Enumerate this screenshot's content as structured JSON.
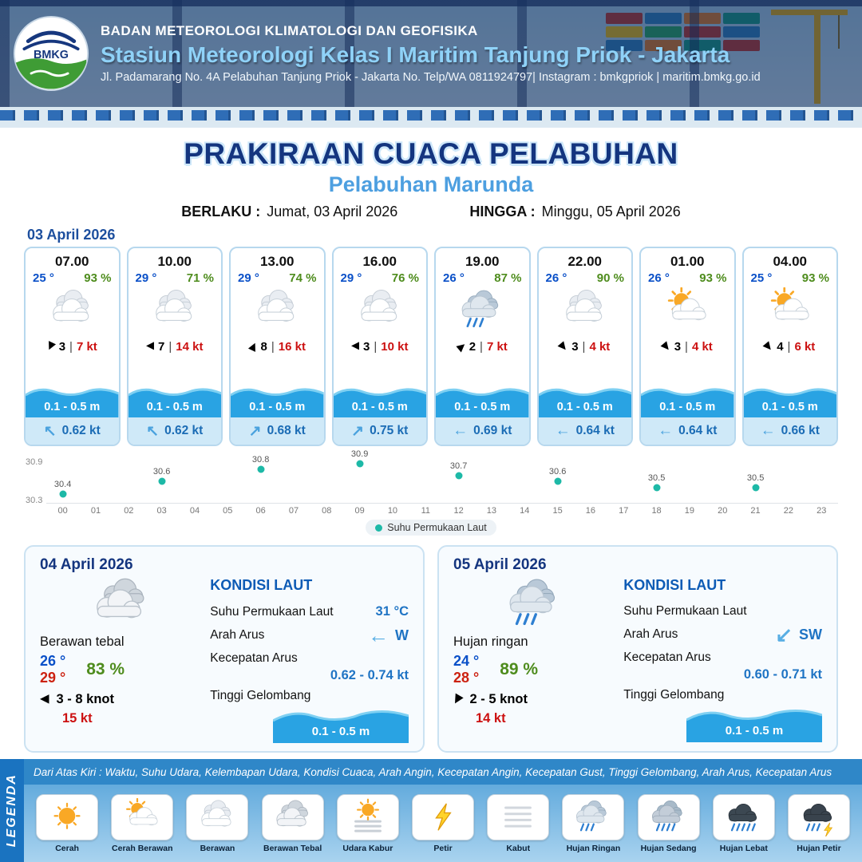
{
  "header": {
    "logo_text": "BMKG",
    "agency": "BADAN METEOROLOGI KLIMATOLOGI DAN GEOFISIKA",
    "station": "Stasiun Meteorologi Kelas I Maritim Tanjung Priok - Jakarta",
    "address": "Jl. Padamarang No. 4A Pelabuhan Tanjung Priok - Jakarta No. Telp/WA 0811924797| Instagram : bmkgpriok | maritim.bmkg.go.id"
  },
  "title": {
    "main": "PRAKIRAAN CUACA PELABUHAN",
    "subtitle": "Pelabuhan Marunda",
    "valid_from_label": "BERLAKU :",
    "valid_from": "Jumat, 03 April 2026",
    "valid_until_label": "HINGGA :",
    "valid_until": "Minggu, 05 April 2026"
  },
  "forecast": {
    "date": "03 April 2026",
    "cards": [
      {
        "time": "07.00",
        "temp": "25 °",
        "humidity": "93 %",
        "icon": "berawan",
        "wind_dir_deg": 115,
        "wind": "3",
        "separator": "|",
        "gust": "7 kt",
        "wave": "0.1 - 0.5 m",
        "current_arrow": "↖",
        "current": "0.62 kt"
      },
      {
        "time": "10.00",
        "temp": "29 °",
        "humidity": "71 %",
        "icon": "berawan",
        "wind_dir_deg": 180,
        "wind": "7",
        "separator": "|",
        "gust": "14 kt",
        "wave": "0.1 - 0.5 m",
        "current_arrow": "↖",
        "current": "0.62 kt"
      },
      {
        "time": "13.00",
        "temp": "29 °",
        "humidity": "74 %",
        "icon": "berawan",
        "wind_dir_deg": 295,
        "wind": "8",
        "separator": "|",
        "gust": "16 kt",
        "wave": "0.1 - 0.5 m",
        "current_arrow": "↗",
        "current": "0.68 kt"
      },
      {
        "time": "16.00",
        "temp": "29 °",
        "humidity": "76 %",
        "icon": "berawan",
        "wind_dir_deg": 180,
        "wind": "3",
        "separator": "|",
        "gust": "10 kt",
        "wave": "0.1 - 0.5 m",
        "current_arrow": "↗",
        "current": "0.75 kt"
      },
      {
        "time": "19.00",
        "temp": "26 °",
        "humidity": "87 %",
        "icon": "hujan-ringan",
        "wind_dir_deg": 320,
        "wind": "2",
        "separator": "|",
        "gust": "7 kt",
        "wave": "0.1 - 0.5 m",
        "current_arrow": "←",
        "current": "0.69 kt"
      },
      {
        "time": "22.00",
        "temp": "26 °",
        "humidity": "90 %",
        "icon": "berawan",
        "wind_dir_deg": 50,
        "wind": "3",
        "separator": "|",
        "gust": "4 kt",
        "wave": "0.1 - 0.5 m",
        "current_arrow": "←",
        "current": "0.64 kt"
      },
      {
        "time": "01.00",
        "temp": "26 °",
        "humidity": "93 %",
        "icon": "cerah-berawan",
        "wind_dir_deg": 50,
        "wind": "3",
        "separator": "|",
        "gust": "4 kt",
        "wave": "0.1 - 0.5 m",
        "current_arrow": "←",
        "current": "0.64 kt"
      },
      {
        "time": "04.00",
        "temp": "25 °",
        "humidity": "93 %",
        "icon": "cerah-berawan",
        "wind_dir_deg": 50,
        "wind": "4",
        "separator": "|",
        "gust": "6 kt",
        "wave": "0.1 - 0.5 m",
        "current_arrow": "←",
        "current": "0.66 kt"
      }
    ]
  },
  "chart_data": {
    "type": "scatter",
    "x": [
      0,
      3,
      6,
      9,
      12,
      15,
      18,
      21
    ],
    "values": [
      30.4,
      30.6,
      30.8,
      30.9,
      30.7,
      30.6,
      30.5,
      30.5
    ],
    "x_ticks": [
      "00",
      "01",
      "02",
      "03",
      "04",
      "05",
      "06",
      "07",
      "08",
      "09",
      "10",
      "11",
      "12",
      "13",
      "14",
      "15",
      "16",
      "17",
      "18",
      "19",
      "20",
      "21",
      "22",
      "23"
    ],
    "ylim": [
      30.3,
      30.9
    ],
    "y_top_label": "30.9",
    "y_bottom_label": "30.3",
    "legend": "Suhu Permukaan Laut",
    "legend_position": "bottom",
    "grid": false,
    "point_color": "#1db9a7"
  },
  "daily": [
    {
      "date": "04 April 2026",
      "icon": "berawan-tebal",
      "condition": "Berawan tebal",
      "temp_min": "26 °",
      "temp_max": "29 °",
      "humidity": "83 %",
      "wind_dir_deg": 180,
      "wind_range": "3 - 8 knot",
      "gust": "15 kt",
      "sea": {
        "title": "KONDISI LAUT",
        "sst_label": "Suhu Permukaan Laut",
        "sst": "31 °C",
        "current_dir_label": "Arah Arus",
        "current_arrow": "←",
        "current_dir": "W",
        "current_speed_label": "Kecepatan Arus",
        "current_speed": "0.62 - 0.74 kt",
        "wave_label": "Tinggi Gelombang",
        "wave": "0.1 - 0.5 m"
      }
    },
    {
      "date": "05 April 2026",
      "icon": "hujan-ringan",
      "condition": "Hujan ringan",
      "temp_min": "24 °",
      "temp_max": "28 °",
      "humidity": "89 %",
      "wind_dir_deg": 120,
      "wind_range": "2 - 5 knot",
      "gust": "14 kt",
      "sea": {
        "title": "KONDISI LAUT",
        "sst_label": "Suhu Permukaan Laut",
        "sst": "",
        "current_dir_label": "Arah Arus",
        "current_arrow": "↙",
        "current_dir": "SW",
        "current_speed_label": "Kecepatan Arus",
        "current_speed": "0.60 - 0.71 kt",
        "wave_label": "Tinggi Gelombang",
        "wave": "0.1 - 0.5 m"
      }
    }
  ],
  "legend": {
    "title": "LEGENDA",
    "description": "Dari Atas Kiri : Waktu, Suhu Udara, Kelembapan Udara, Kondisi Cuaca, Arah Angin, Kecepatan Angin, Kecepatan Gust, Tinggi Gelombang, Arah Arus, Kecepatan Arus",
    "items": [
      {
        "label": "Cerah",
        "icon": "cerah"
      },
      {
        "label": "Cerah Berawan",
        "icon": "cerah-berawan"
      },
      {
        "label": "Berawan",
        "icon": "berawan"
      },
      {
        "label": "Berawan Tebal",
        "icon": "berawan-tebal"
      },
      {
        "label": "Udara Kabur",
        "icon": "udara-kabur"
      },
      {
        "label": "Petir",
        "icon": "petir"
      },
      {
        "label": "Kabut",
        "icon": "kabut"
      },
      {
        "label": "Hujan Ringan",
        "icon": "hujan-ringan"
      },
      {
        "label": "Hujan Sedang",
        "icon": "hujan-sedang"
      },
      {
        "label": "Hujan Lebat",
        "icon": "hujan-lebat"
      },
      {
        "label": "Hujan Petir",
        "icon": "hujan-petir"
      }
    ]
  }
}
